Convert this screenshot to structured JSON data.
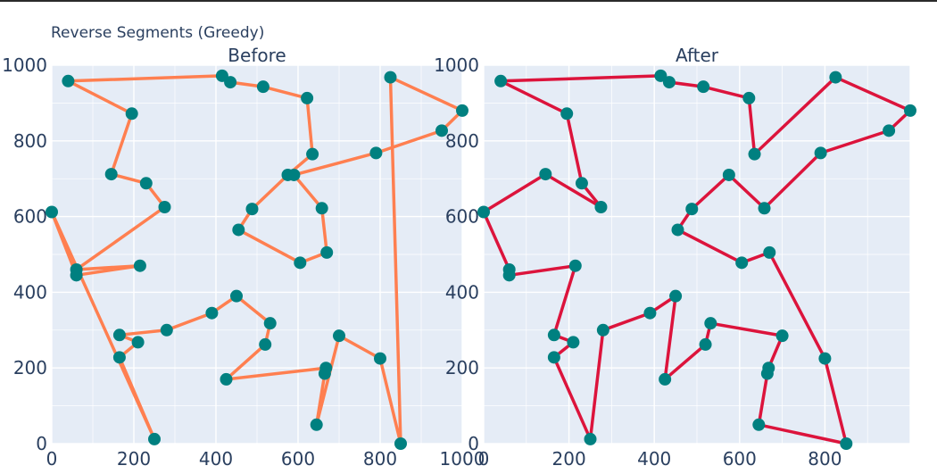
{
  "figure": {
    "title": "Reverse Segments (Greedy)",
    "plot_bg": "#e5ecf6",
    "grid_color": "#ffffff",
    "marker_color": "#008080"
  },
  "chart_data": [
    {
      "type": "line",
      "title": "Before",
      "line_color": "#ff7f50",
      "xlim": [
        0,
        1000
      ],
      "ylim": [
        0,
        1000
      ],
      "x_ticks": [
        0,
        200,
        400,
        600,
        800,
        1000
      ],
      "y_ticks": [
        0,
        200,
        400,
        600,
        800,
        1000
      ],
      "points": [
        [
          40,
          958
        ],
        [
          415,
          972
        ],
        [
          435,
          955
        ],
        [
          515,
          943
        ],
        [
          622,
          913
        ],
        [
          635,
          765
        ],
        [
          575,
          710
        ],
        [
          488,
          620
        ],
        [
          455,
          565
        ],
        [
          605,
          478
        ],
        [
          670,
          505
        ],
        [
          658,
          622
        ],
        [
          590,
          710
        ],
        [
          790,
          768
        ],
        [
          950,
          827
        ],
        [
          1000,
          880
        ],
        [
          825,
          968
        ],
        [
          850,
          0
        ],
        [
          800,
          225
        ],
        [
          700,
          285
        ],
        [
          645,
          50
        ],
        [
          665,
          185
        ],
        [
          668,
          200
        ],
        [
          425,
          170
        ],
        [
          520,
          262
        ],
        [
          532,
          318
        ],
        [
          450,
          390
        ],
        [
          390,
          345
        ],
        [
          280,
          300
        ],
        [
          165,
          287
        ],
        [
          210,
          268
        ],
        [
          165,
          228
        ],
        [
          250,
          12
        ],
        [
          0,
          612
        ],
        [
          60,
          445
        ],
        [
          215,
          470
        ],
        [
          60,
          460
        ],
        [
          275,
          625
        ],
        [
          230,
          688
        ],
        [
          145,
          712
        ],
        [
          195,
          872
        ],
        [
          40,
          958
        ]
      ]
    },
    {
      "type": "line",
      "title": "After",
      "line_color": "#dc143c",
      "xlim": [
        0,
        1000
      ],
      "ylim": [
        0,
        1000
      ],
      "x_ticks": [
        0,
        200,
        400,
        600,
        800
      ],
      "y_ticks": [
        0,
        200,
        400,
        600,
        800,
        1000
      ],
      "points": [
        [
          40,
          958
        ],
        [
          415,
          972
        ],
        [
          435,
          955
        ],
        [
          515,
          943
        ],
        [
          622,
          913
        ],
        [
          635,
          765
        ],
        [
          825,
          968
        ],
        [
          1000,
          880
        ],
        [
          950,
          827
        ],
        [
          790,
          768
        ],
        [
          658,
          622
        ],
        [
          575,
          710
        ],
        [
          488,
          620
        ],
        [
          455,
          565
        ],
        [
          605,
          478
        ],
        [
          670,
          505
        ],
        [
          800,
          225
        ],
        [
          850,
          0
        ],
        [
          645,
          50
        ],
        [
          665,
          185
        ],
        [
          668,
          200
        ],
        [
          700,
          285
        ],
        [
          532,
          318
        ],
        [
          520,
          262
        ],
        [
          425,
          170
        ],
        [
          450,
          390
        ],
        [
          390,
          345
        ],
        [
          280,
          300
        ],
        [
          250,
          12
        ],
        [
          165,
          228
        ],
        [
          210,
          268
        ],
        [
          165,
          287
        ],
        [
          215,
          470
        ],
        [
          60,
          445
        ],
        [
          60,
          460
        ],
        [
          0,
          612
        ],
        [
          145,
          712
        ],
        [
          275,
          625
        ],
        [
          230,
          688
        ],
        [
          195,
          872
        ],
        [
          40,
          958
        ]
      ]
    }
  ]
}
